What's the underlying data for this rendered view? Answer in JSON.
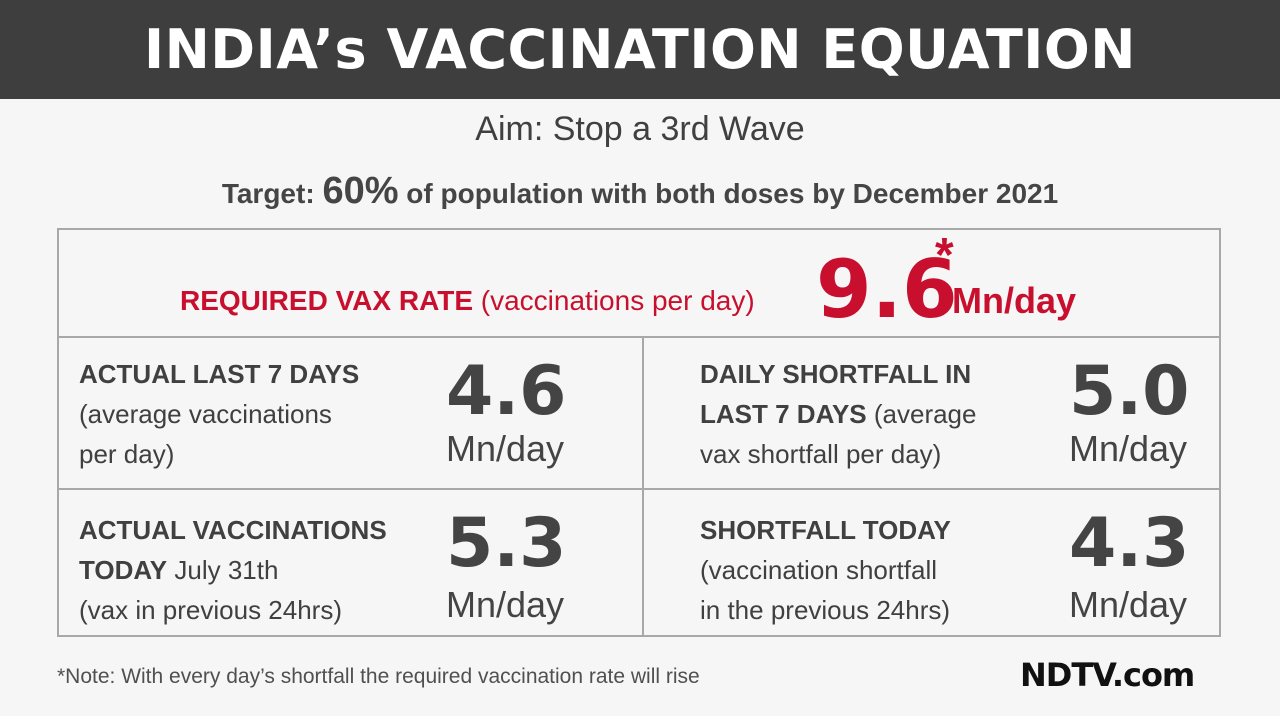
{
  "header": {
    "title": "INDIA’s VACCINATION EQUATION"
  },
  "aim": "Aim: Stop a 3rd Wave",
  "target": {
    "prefix": "Target:",
    "percent": "60%",
    "suffix": "of population with both doses by December 2021"
  },
  "required": {
    "label_bold": "REQUIRED VAX RATE",
    "label_rest": "(vaccinations per day)",
    "value": "9.6",
    "asterisk": "*",
    "unit": "Mn/day"
  },
  "cells": [
    {
      "line1": "ACTUAL LAST 7 DAYS",
      "line2": "(average vaccinations",
      "line3": "per day)",
      "value": "4.6",
      "unit": "Mn/day"
    },
    {
      "line1": "DAILY SHORTFALL IN",
      "line2_bold": "LAST 7 DAYS",
      "line2_rest": " (average",
      "line3": "vax shortfall per day)",
      "value": "5.0",
      "unit": "Mn/day"
    },
    {
      "line1": "ACTUAL VACCINATIONS",
      "line2_bold": "TODAY",
      "line2_rest": " July 31th",
      "line3": "(vax in previous 24hrs)",
      "value": "5.3",
      "unit": "Mn/day"
    },
    {
      "line1": "SHORTFALL TODAY",
      "line2": "(vaccination shortfall",
      "line3": "in the previous 24hrs)",
      "value": "4.3",
      "unit": "Mn/day"
    }
  ],
  "note": "*Note: With every day’s shortfall the required vaccination rate will rise",
  "logo": "NDTV.com",
  "colors": {
    "header_bg": "#3e3e3e",
    "accent_red": "#c8102e",
    "text": "#404040"
  }
}
